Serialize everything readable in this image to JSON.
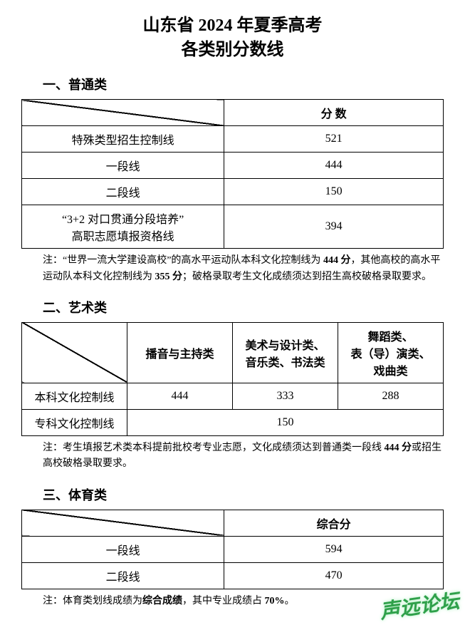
{
  "title_line1": "山东省 2024 年夏季高考",
  "title_line2": "各类别分数线",
  "title_fontsize": 24,
  "sec1": {
    "heading": "一、普通类",
    "hdr_score": "分 数",
    "rows": [
      {
        "label": "特殊类型招生控制线",
        "score": "521"
      },
      {
        "label": "一段线",
        "score": "444"
      },
      {
        "label": "二段线",
        "score": "150"
      },
      {
        "label": "“3+2 对口贯通分段培养”\n高职志愿填报资格线",
        "score": "394"
      }
    ],
    "note_pre": "注：“世界一流大学建设高校”的高水平运动队本科文化控制线为 ",
    "note_b1": "444 分",
    "note_mid": "，其他高校的高水平运动队本科文化控制线为 ",
    "note_b2": "355 分",
    "note_post": "；破格录取考生文化成绩须达到招生高校破格录取要求。"
  },
  "sec2": {
    "heading": "二、艺术类",
    "cols": [
      "播音与主持类",
      "美术与设计类、\n音乐类、书法类",
      "舞蹈类、\n表（导）演类、\n戏曲类"
    ],
    "row1_label": "本科文化控制线",
    "row1_vals": [
      "444",
      "333",
      "288"
    ],
    "row2_label": "专科文化控制线",
    "row2_val": "150",
    "note_pre": "注：考生填报艺术类本科提前批校考专业志愿，文化成绩须达到普通类一段线 ",
    "note_b": "444 分",
    "note_post": "或招生高校破格录取要求。"
  },
  "sec3": {
    "heading": "三、体育类",
    "hdr_score": "综合分",
    "rows": [
      {
        "label": "一段线",
        "score": "594"
      },
      {
        "label": "二段线",
        "score": "470"
      }
    ],
    "note_pre": "注：体育类划线成绩为",
    "note_b1": "综合成绩",
    "note_mid": "，其中专业成绩占 ",
    "note_b2": "70%",
    "note_post": "。"
  },
  "col_widths": {
    "label_pct": 48,
    "score_pct": 52,
    "art_label_pct": 25,
    "art_col_pct": 25
  },
  "body_fontsize": 16,
  "note_fontsize": 14,
  "header_fontsize": 18,
  "watermark": {
    "text": "声远论坛",
    "color": "#2fa04a",
    "glow": "#b8f0c8",
    "fontsize": 28
  }
}
